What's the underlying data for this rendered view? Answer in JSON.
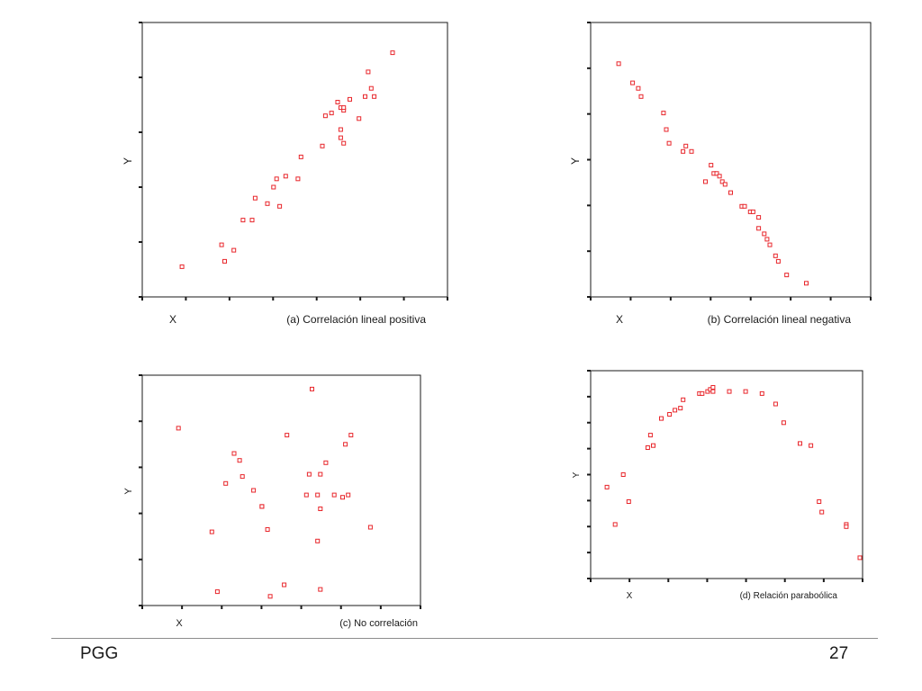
{
  "colors": {
    "marker": "#e8262b",
    "axis": "#1a1a1a",
    "footer_rule": "#8c8c8c"
  },
  "footer": {
    "left": "PGG",
    "right": "27"
  },
  "chart_data": [
    {
      "type": "scatter",
      "caption": "(a) Correlación lineal positiva",
      "xlabel": "X",
      "ylabel": "Y",
      "xlim": [
        0,
        100
      ],
      "ylim": [
        0,
        100
      ],
      "points": [
        [
          13,
          11
        ],
        [
          27,
          13
        ],
        [
          26,
          19
        ],
        [
          30,
          17
        ],
        [
          33,
          28
        ],
        [
          36,
          28
        ],
        [
          37,
          36
        ],
        [
          41,
          34
        ],
        [
          43,
          40
        ],
        [
          44,
          43
        ],
        [
          45,
          33
        ],
        [
          47,
          44
        ],
        [
          51,
          43
        ],
        [
          52,
          51
        ],
        [
          59,
          55
        ],
        [
          60,
          66
        ],
        [
          62,
          67
        ],
        [
          64,
          71
        ],
        [
          65,
          69
        ],
        [
          65,
          61
        ],
        [
          66,
          56
        ],
        [
          65,
          58
        ],
        [
          66,
          68
        ],
        [
          66,
          69
        ],
        [
          68,
          72
        ],
        [
          71,
          65
        ],
        [
          73,
          73
        ],
        [
          74,
          82
        ],
        [
          75,
          76
        ],
        [
          76,
          73
        ],
        [
          82,
          89
        ]
      ]
    },
    {
      "type": "scatter",
      "caption": "(b) Correlación lineal negativa",
      "xlabel": "X",
      "ylabel": "Y",
      "xlim": [
        0,
        100
      ],
      "ylim": [
        0,
        100
      ],
      "points": [
        [
          10,
          85
        ],
        [
          15,
          78
        ],
        [
          17,
          76
        ],
        [
          18,
          73
        ],
        [
          26,
          67
        ],
        [
          27,
          61
        ],
        [
          28,
          56
        ],
        [
          33,
          53
        ],
        [
          34,
          55
        ],
        [
          36,
          53
        ],
        [
          41,
          42
        ],
        [
          43,
          48
        ],
        [
          44,
          45
        ],
        [
          45,
          45
        ],
        [
          46,
          44
        ],
        [
          47,
          42
        ],
        [
          48,
          41
        ],
        [
          50,
          38
        ],
        [
          54,
          33
        ],
        [
          55,
          33
        ],
        [
          57,
          31
        ],
        [
          58,
          31
        ],
        [
          60,
          29
        ],
        [
          60,
          25
        ],
        [
          62,
          23
        ],
        [
          63,
          21
        ],
        [
          64,
          19
        ],
        [
          66,
          15
        ],
        [
          67,
          13
        ],
        [
          70,
          8
        ],
        [
          77,
          5
        ]
      ]
    },
    {
      "type": "scatter",
      "caption": "(c) No correlación",
      "xlabel": "X",
      "ylabel": "Y",
      "xlim": [
        0,
        100
      ],
      "ylim": [
        0,
        100
      ],
      "points": [
        [
          13,
          77
        ],
        [
          25,
          32
        ],
        [
          27,
          6
        ],
        [
          30,
          53
        ],
        [
          33,
          66
        ],
        [
          35,
          63
        ],
        [
          36,
          56
        ],
        [
          40,
          50
        ],
        [
          43,
          43
        ],
        [
          43,
          43
        ],
        [
          45,
          33
        ],
        [
          46,
          4
        ],
        [
          51,
          9
        ],
        [
          52,
          74
        ],
        [
          59,
          48
        ],
        [
          60,
          57
        ],
        [
          61,
          94
        ],
        [
          63,
          28
        ],
        [
          63,
          48
        ],
        [
          64,
          57
        ],
        [
          64,
          42
        ],
        [
          64,
          7
        ],
        [
          66,
          62
        ],
        [
          69,
          48
        ],
        [
          72,
          47
        ],
        [
          73,
          70
        ],
        [
          74,
          48
        ],
        [
          75,
          74
        ],
        [
          82,
          34
        ]
      ]
    },
    {
      "type": "scatter",
      "caption": "(d) Relación paraboólica",
      "xlabel": "X",
      "ylabel": "Y",
      "xlim": [
        0,
        100
      ],
      "ylim": [
        0,
        100
      ],
      "points": [
        [
          6,
          44
        ],
        [
          9,
          26
        ],
        [
          12,
          50
        ],
        [
          14,
          37
        ],
        [
          21,
          63
        ],
        [
          23,
          64
        ],
        [
          22,
          69
        ],
        [
          26,
          77
        ],
        [
          29,
          79
        ],
        [
          31,
          81
        ],
        [
          33,
          82
        ],
        [
          34,
          86
        ],
        [
          40,
          89
        ],
        [
          41,
          89
        ],
        [
          43,
          90
        ],
        [
          44,
          91
        ],
        [
          45,
          92
        ],
        [
          45,
          90
        ],
        [
          51,
          90
        ],
        [
          57,
          90
        ],
        [
          63,
          89
        ],
        [
          68,
          84
        ],
        [
          71,
          75
        ],
        [
          77,
          65
        ],
        [
          81,
          64
        ],
        [
          84,
          37
        ],
        [
          85,
          32
        ],
        [
          94,
          26
        ],
        [
          94,
          25
        ],
        [
          99,
          10
        ]
      ]
    }
  ]
}
